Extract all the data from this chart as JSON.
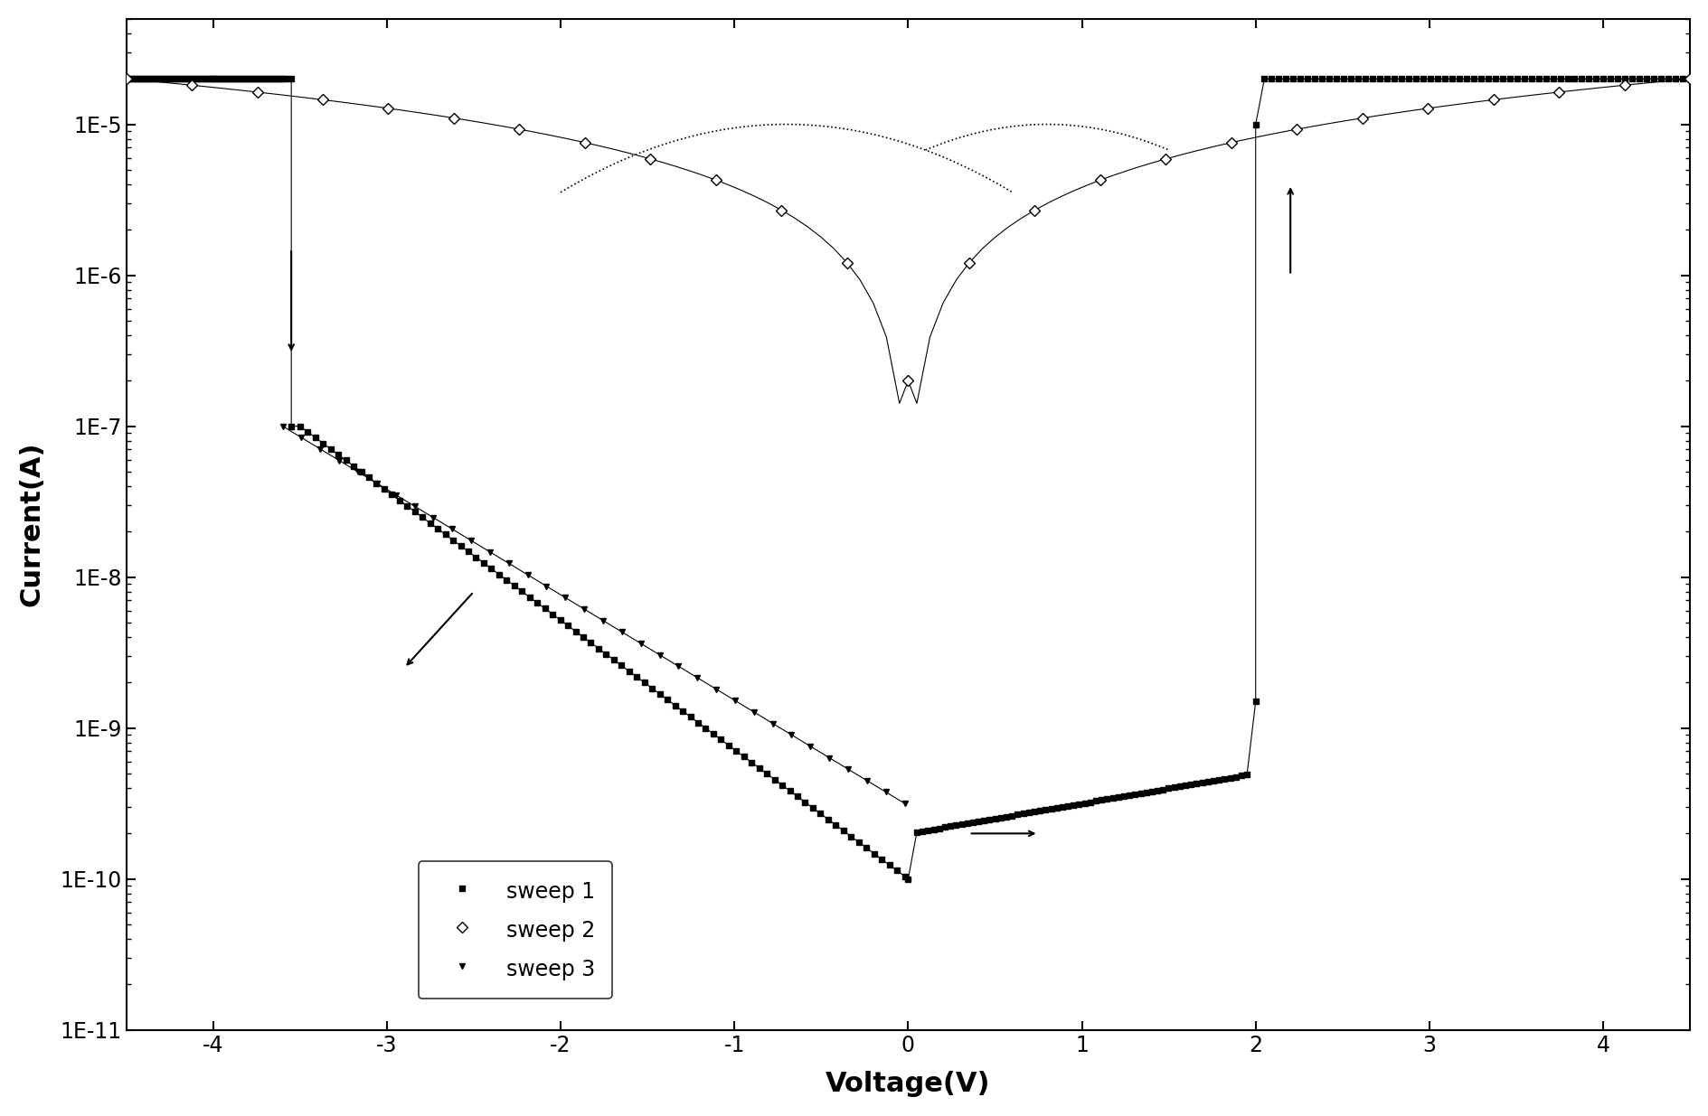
{
  "title": "",
  "xlabel": "Voltage(V)",
  "ylabel": "Current(A)",
  "xlim": [
    -4.5,
    4.5
  ],
  "xticks": [
    -4,
    -3,
    -2,
    -1,
    0,
    1,
    2,
    3,
    4
  ],
  "ytick_labels": [
    "1E-11",
    "1E-10",
    "1E-9",
    "1E-8",
    "1E-7",
    "1E-6",
    "1E-5"
  ],
  "background_color": "#ffffff",
  "legend_labels": [
    "sweep 1",
    "sweep 2",
    "sweep 3"
  ]
}
